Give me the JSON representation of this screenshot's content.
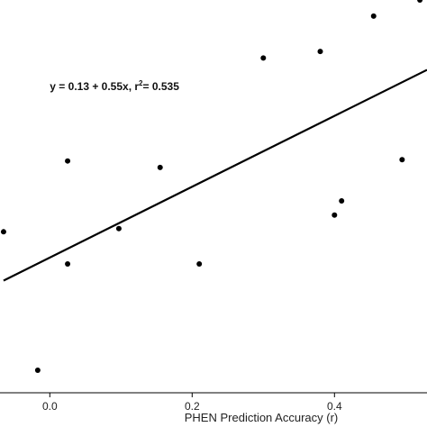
{
  "chart_data": {
    "type": "scatter",
    "title": "",
    "xlabel": "PHEN Prediction Accuracy (r)",
    "ylabel": "",
    "xlim": [
      -0.07,
      0.53
    ],
    "ylim": [
      -0.08,
      0.53
    ],
    "x_ticks": [
      0.0,
      0.2,
      0.4
    ],
    "x_tick_labels": [
      "0.0",
      "0.2",
      "0.4"
    ],
    "grid": false,
    "legend": "none",
    "point_color": "#000000",
    "line_color": "#000000",
    "points": [
      {
        "x": -0.065,
        "y": 0.17
      },
      {
        "x": -0.017,
        "y": -0.045
      },
      {
        "x": 0.025,
        "y": 0.28
      },
      {
        "x": 0.025,
        "y": 0.12
      },
      {
        "x": 0.097,
        "y": 0.175
      },
      {
        "x": 0.155,
        "y": 0.27
      },
      {
        "x": 0.21,
        "y": 0.12
      },
      {
        "x": 0.3,
        "y": 0.44
      },
      {
        "x": 0.38,
        "y": 0.45
      },
      {
        "x": 0.4,
        "y": 0.196
      },
      {
        "x": 0.41,
        "y": 0.218
      },
      {
        "x": 0.455,
        "y": 0.505
      },
      {
        "x": 0.495,
        "y": 0.282
      },
      {
        "x": 0.52,
        "y": 0.53
      }
    ],
    "regression": {
      "intercept": 0.13,
      "slope": 0.55,
      "x_range": [
        -0.065,
        0.53
      ],
      "equation_prefix": "y = 0.13 + 0.55x, r",
      "equation_sup": "2",
      "equation_suffix": "= 0.535",
      "label_x": 0.0,
      "label_y": 0.39
    }
  }
}
